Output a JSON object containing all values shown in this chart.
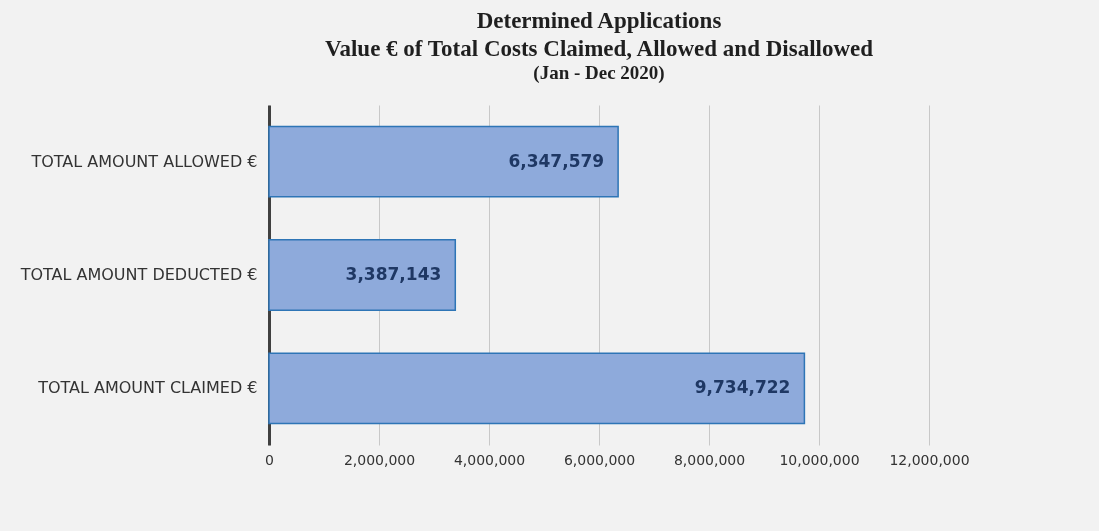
{
  "chart_data": {
    "type": "bar",
    "orientation": "horizontal",
    "title": "Determined Applications\nValue € of Total Costs Claimed, Allowed and Disallowed",
    "subtitle": "(Jan - Dec 2020)",
    "categories": [
      "TOTAL AMOUNT ALLOWED €",
      "TOTAL AMOUNT DEDUCTED €",
      "TOTAL AMOUNT CLAIMED €"
    ],
    "values": [
      6347579,
      3387143,
      9734722
    ],
    "value_labels": [
      "6,347,579",
      "3,387,143",
      "9,734,722"
    ],
    "color": "#8eaadb",
    "xlim": [
      0,
      12000000
    ],
    "xticks": [
      0,
      {
        "value": 2000000,
        "label": "2,000,000"
      },
      {
        "value": 4000000,
        "label": "4,000,000"
      },
      {
        "value": 6000000,
        "label": "6,000,000"
      },
      {
        "value": 8000000,
        "label": "8,000,000"
      },
      {
        "value": 10000000,
        "label": "10,000,000"
      },
      {
        "value": 12000000,
        "label": "12,000,000"
      }
    ],
    "grid": "x"
  }
}
